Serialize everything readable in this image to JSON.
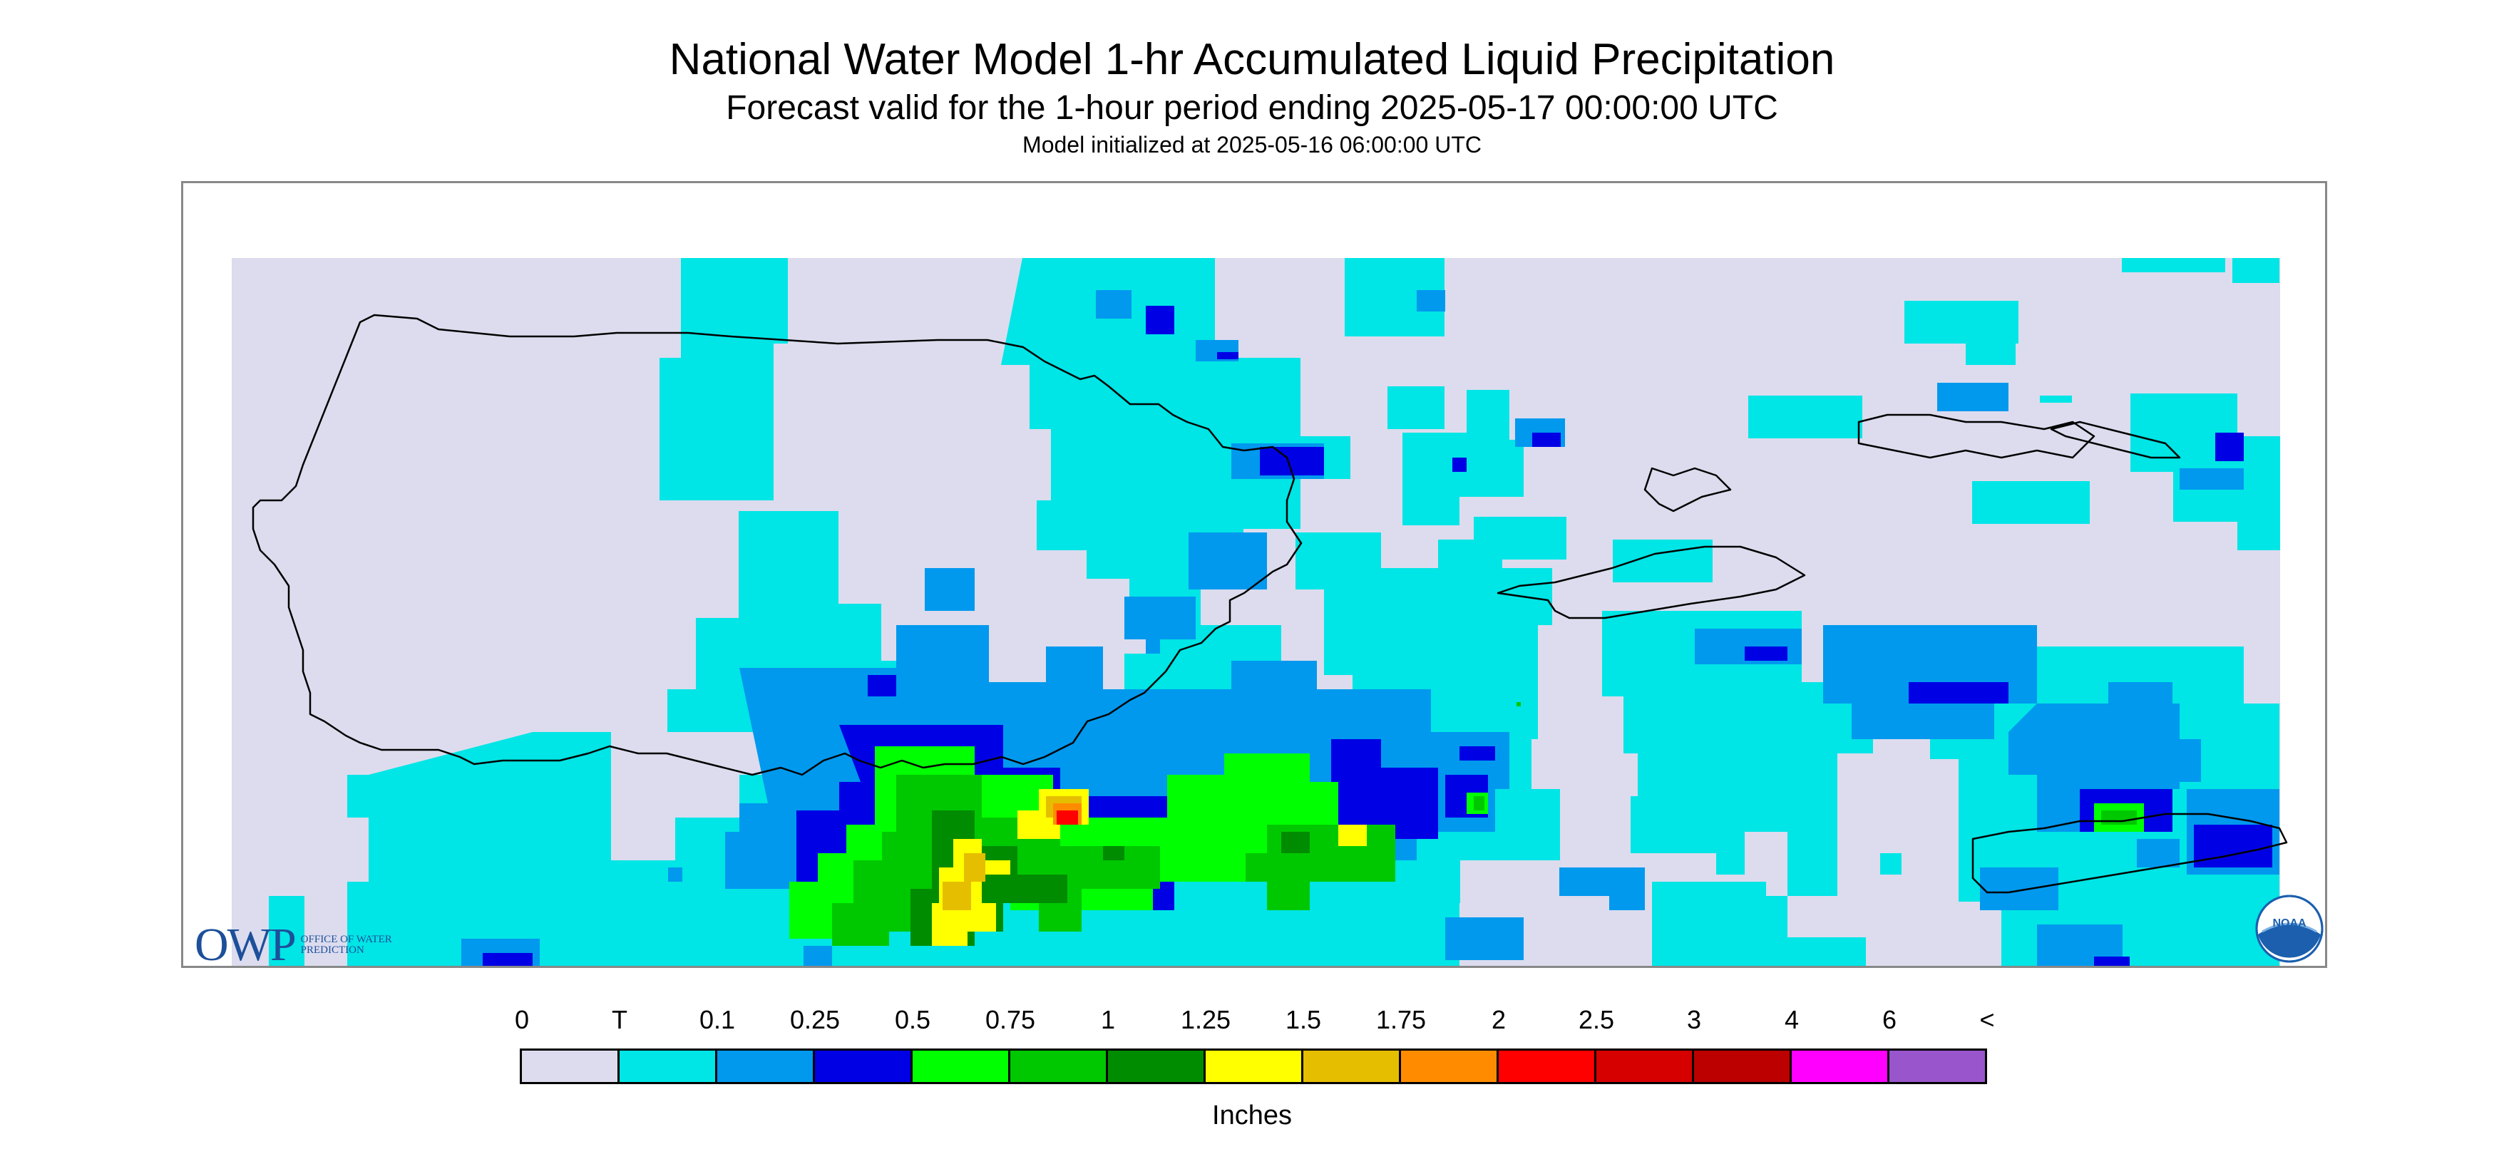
{
  "header": {
    "title": "National Water Model 1-hr Accumulated Liquid Precipitation",
    "subtitle": "Forecast valid for the 1-hour period ending 2025-05-17 00:00:00 UTC",
    "init_line": "Model initialized at 2025-05-16 06:00:00 UTC"
  },
  "logos": {
    "owp_letters": "OWP",
    "owp_subtitle": "OFFICE OF WATER PREDICTION",
    "noaa_text": "NOAA"
  },
  "map": {
    "background_color": "#ffffff",
    "no_data_color": "#dcdcee",
    "coastline_color": "#000000",
    "icon": "precipitation-map"
  },
  "legend": {
    "labels": [
      "0",
      "T",
      "0.1",
      "0.25",
      "0.5",
      "0.75",
      "1",
      "1.25",
      "1.5",
      "1.75",
      "2",
      "2.5",
      "3",
      "4",
      "6",
      "<"
    ],
    "colors": [
      "#dcdcee",
      "#00e5e5",
      "#0099ee",
      "#0000e5",
      "#00ff00",
      "#00c800",
      "#008c00",
      "#ffff00",
      "#e6be00",
      "#ff8c00",
      "#ff0000",
      "#d70000",
      "#bc0000",
      "#ff00ff",
      "#9955cc"
    ],
    "units": "Inches"
  }
}
